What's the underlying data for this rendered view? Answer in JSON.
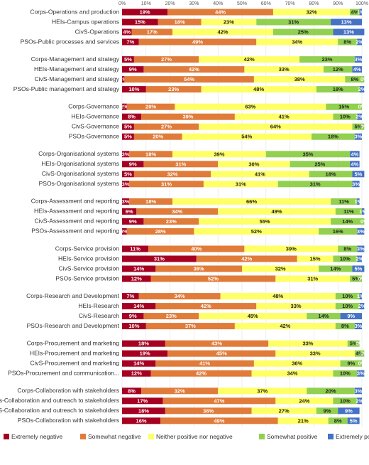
{
  "chart_data": {
    "type": "stacked_barh",
    "categories": [
      "Corps-Operations and production",
      "HEIs-Campus operations",
      "CivS-Operations",
      "PSOs-Public processes and services",
      "Corps-Management and strategy",
      "HEIs-Management and strategy",
      "CivS-Management and strategy",
      "PSOs-Public management and strategy",
      "Corps-Governance",
      "HEIs-Governance",
      "CivS-Governance",
      "PSOs-Governance",
      "Corps-Organisational systems",
      "HEIs-Organisational systems",
      "CivS-Organisational systems",
      "PSOs-Organisational systems",
      "Corps-Assessment and reporting",
      "HEIs-Assessment and reporting",
      "CivS-Assessment and reporting",
      "PSOs-Assessment and reporting",
      "Corps-Service provision",
      "HEIs-Service provision",
      "CivS-Service provision",
      "PSOs-Service provision",
      "Corps-Research and Development",
      "HEIs-Research",
      "CivS-Research",
      "PSOs-Research and Development",
      "Corps-Procurement and marketing",
      "HEIs-Procurement and marketing",
      "CivS-Procurement and marketing",
      "PSOs-Procurement and communication...",
      "Corps-Collaboration with stakeholders",
      "HEIs-Collaboration and outreach to stakeholders",
      "CivS-Collaboration and outreach to stakeholders",
      "PSOs-Collaboration with stakeholders"
    ],
    "series": [
      {
        "name": "Extremely negative",
        "color": "#a50021",
        "values": [
          19,
          15,
          4,
          7,
          5,
          9,
          1,
          10,
          2,
          8,
          5,
          5,
          3,
          9,
          5,
          3,
          3,
          6,
          9,
          2,
          11,
          31,
          14,
          12,
          7,
          14,
          9,
          10,
          18,
          19,
          14,
          12,
          8,
          17,
          18,
          16
        ],
        "value_labels": [
          "19%",
          "15%",
          "4%",
          "7%",
          "5%",
          "9%",
          "1%",
          "10%",
          "2%",
          "8%",
          "5%",
          "5%",
          "3%",
          "9%",
          "5%",
          "3%",
          "3%",
          "6%",
          "9%",
          "2%",
          "11%",
          "31%",
          "14%",
          "12%",
          "7%",
          "14%",
          "9%",
          "10%",
          "18%",
          "19%",
          "14%",
          "12%",
          "8%",
          "17%",
          "18%",
          "16%"
        ]
      },
      {
        "name": "Somewhat negative",
        "color": "#e07b39",
        "values": [
          44,
          18,
          17,
          49,
          27,
          42,
          54,
          23,
          20,
          39,
          27,
          20,
          18,
          31,
          32,
          31,
          18,
          34,
          23,
          28,
          40,
          42,
          36,
          52,
          34,
          42,
          23,
          37,
          43,
          45,
          41,
          42,
          32,
          47,
          36,
          49
        ],
        "value_labels": [
          "44%",
          "18%",
          "17%",
          "49%",
          "27%",
          "42%",
          "54%",
          "23%",
          "20%",
          "39%",
          "27%",
          "20%",
          "18%",
          "31%",
          "32%",
          "31%",
          "18%",
          "34%",
          "23%",
          "28%",
          "40%",
          "42%",
          "36%",
          "52%",
          "34%",
          "42%",
          "23%",
          "37%",
          "43%",
          "45%",
          "41%",
          "42%",
          "32%",
          "47%",
          "36%",
          "49%"
        ]
      },
      {
        "name": "Neither positive nor negative",
        "color": "#ffff66",
        "values": [
          32,
          23,
          42,
          34,
          42,
          33,
          38,
          48,
          63,
          41,
          64,
          54,
          39,
          30,
          41,
          31,
          66,
          49,
          55,
          52,
          39,
          15,
          32,
          31,
          48,
          33,
          45,
          42,
          33,
          33,
          36,
          34,
          37,
          24,
          27,
          21
        ],
        "value_labels": [
          "32%",
          "23%",
          "42%",
          "34%",
          "42%",
          "33%",
          "38%",
          "48%",
          "63%",
          "41%",
          "64%",
          "54%",
          "39%",
          "30%",
          "41%",
          "31%",
          "66%",
          "49%",
          "55%",
          "52%",
          "39%",
          "15%",
          "32%",
          "31%",
          "48%",
          "33%",
          "45%",
          "42%",
          "33%",
          "33%",
          "36%",
          "34%",
          "37%",
          "24%",
          "27%",
          "21%"
        ]
      },
      {
        "name": "Somewhat positive",
        "color": "#92d050",
        "values": [
          4,
          31,
          25,
          8,
          23,
          12,
          8,
          18,
          15,
          10,
          5,
          18,
          35,
          25,
          18,
          31,
          11,
          11,
          14,
          16,
          8,
          10,
          14,
          5,
          10,
          10,
          14,
          8,
          5,
          4,
          9,
          10,
          20,
          10,
          9,
          8
        ],
        "value_labels": [
          "4%",
          "31%",
          "25%",
          "8%",
          "23%",
          "12%",
          "8%",
          "18%",
          "15%",
          "10%",
          "5%",
          "18%",
          "35%",
          "25%",
          "18%",
          "31%",
          "11%",
          "11%",
          "14%",
          "16%",
          "8%",
          "10%",
          "14%",
          "5%",
          "10%",
          "10%",
          "14%",
          "8%",
          "5%",
          "4%",
          "9%",
          "10%",
          "20%",
          "10%",
          "9%",
          "8%"
        ]
      },
      {
        "name": "Extremely positive",
        "color": "#4472c4",
        "values": [
          1,
          13,
          13,
          2,
          3,
          4,
          0,
          2,
          0,
          2,
          0,
          3,
          4,
          4,
          5,
          3,
          1,
          1,
          0,
          3,
          3,
          2,
          5,
          0,
          1,
          2,
          9,
          3,
          0,
          0,
          0,
          3,
          3,
          2,
          9,
          5
        ],
        "value_labels": [
          "1%",
          "13%",
          "13%",
          "2%",
          "3%",
          "4%",
          "0%",
          "2%",
          "0%",
          "2%",
          "0%",
          "3%",
          "4%",
          "4%",
          "5%",
          "3%",
          "1%",
          "1%",
          "0%",
          "3%",
          "3%",
          "2%",
          "5%",
          "0%",
          "1%",
          "2%",
          "9%",
          "3%",
          "0%",
          "0%",
          "0%",
          "3%",
          "3%",
          "2%",
          "9%",
          "5%"
        ]
      }
    ],
    "xlim": [
      0,
      100
    ],
    "xticks": [
      {
        "value": 0,
        "label": "0%"
      },
      {
        "value": 10,
        "label": "10%"
      },
      {
        "value": 20,
        "label": "20%"
      },
      {
        "value": 30,
        "label": "30%"
      },
      {
        "value": 40,
        "label": "40%"
      },
      {
        "value": 50,
        "label": "50%"
      },
      {
        "value": 60,
        "label": "60%"
      },
      {
        "value": 70,
        "label": "70%"
      },
      {
        "value": 80,
        "label": "80%"
      },
      {
        "value": 90,
        "label": "90%"
      },
      {
        "value": 100,
        "label": "100%"
      }
    ],
    "legend": "bottom"
  }
}
